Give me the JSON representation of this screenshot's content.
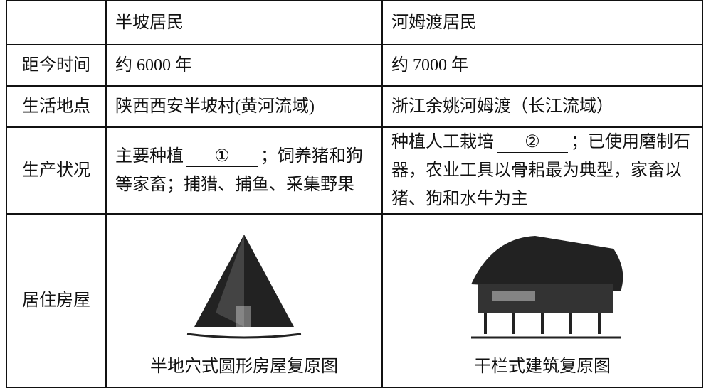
{
  "table": {
    "columns": [
      "半坡居民",
      "河姆渡居民"
    ],
    "rows": [
      {
        "label": "距今时间",
        "cells": [
          "约 6000 年",
          "约 7000 年"
        ]
      },
      {
        "label": "生活地点",
        "cells": [
          "陕西西安半坡村(黄河流域)",
          "浙江余姚河姆渡（长江流域）"
        ]
      },
      {
        "label": "生产状况",
        "cells": [
          {
            "before": "主要种植",
            "blank": "①",
            "after": "；饲养猪和狗等家畜；捕猎、捕鱼、采集野果"
          },
          {
            "before": "种植人工栽培",
            "blank": "②",
            "after": "；已使用磨制石器，农业工具以骨耜最为典型，家畜以猪、狗和水牛为主"
          }
        ]
      },
      {
        "label": "居住房屋",
        "cells": [
          {
            "caption": "半地穴式圆形房屋复原图"
          },
          {
            "caption": "干栏式建筑复原图"
          }
        ]
      }
    ]
  }
}
